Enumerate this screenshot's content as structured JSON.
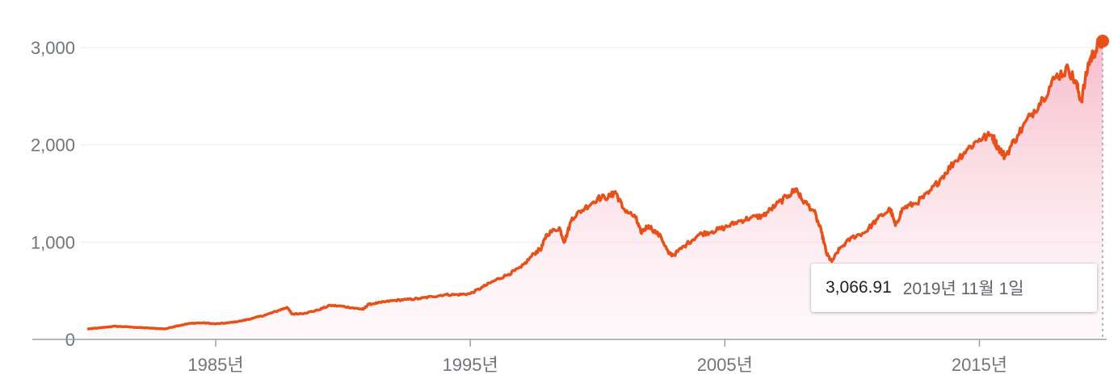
{
  "chart_data": {
    "type": "area",
    "title": "",
    "xlabel": "",
    "ylabel": "",
    "xlim": [
      1979.7,
      2020.0
    ],
    "ylim": [
      0,
      3066.91
    ],
    "y_ticks": [
      0,
      1000,
      2000,
      3000
    ],
    "y_tick_labels": [
      "0",
      "1,000",
      "2,000",
      "3,000"
    ],
    "x_ticks": [
      1985,
      1995,
      2005,
      2015
    ],
    "x_tick_labels": [
      "1985년",
      "1995년",
      "2005년",
      "2015년"
    ],
    "grid": true,
    "legend": "none",
    "colors": {
      "line": "#e8501a",
      "fill_top": "#f6b7c8",
      "axis": "#9aa0a6",
      "grid": "#ececec"
    },
    "series": [
      {
        "x": [
          1980.0,
          1980.5,
          1981.0,
          1981.5,
          1982.0,
          1982.5,
          1983.0,
          1983.5,
          1984.0,
          1984.5,
          1985.0,
          1985.5,
          1986.0,
          1986.5,
          1987.0,
          1987.5,
          1987.8,
          1988.0,
          1988.5,
          1989.0,
          1989.5,
          1990.0,
          1990.5,
          1990.8,
          1991.0,
          1991.5,
          1992.0,
          1992.5,
          1993.0,
          1993.5,
          1994.0,
          1994.5,
          1995.0,
          1995.5,
          1996.0,
          1996.5,
          1997.0,
          1997.5,
          1997.8,
          1998.0,
          1998.5,
          1998.7,
          1999.0,
          1999.5,
          2000.0,
          2000.5,
          2000.7,
          2001.0,
          2001.5,
          2001.7,
          2002.0,
          2002.5,
          2002.8,
          2003.0,
          2003.5,
          2004.0,
          2004.5,
          2005.0,
          2005.5,
          2006.0,
          2006.5,
          2007.0,
          2007.5,
          2007.8,
          2008.0,
          2008.5,
          2008.8,
          2009.0,
          2009.2,
          2009.5,
          2010.0,
          2010.5,
          2011.0,
          2011.5,
          2011.7,
          2012.0,
          2012.5,
          2013.0,
          2013.5,
          2014.0,
          2014.5,
          2015.0,
          2015.5,
          2015.7,
          2016.0,
          2016.5,
          2017.0,
          2017.5,
          2018.0,
          2018.5,
          2018.8,
          2019.0,
          2019.3,
          2019.5,
          2019.84
        ],
        "y": [
          108,
          120,
          135,
          130,
          122,
          115,
          108,
          140,
          165,
          170,
          160,
          170,
          190,
          220,
          255,
          300,
          330,
          260,
          270,
          300,
          350,
          340,
          320,
          310,
          360,
          380,
          400,
          410,
          420,
          440,
          460,
          460,
          470,
          540,
          610,
          670,
          740,
          880,
          940,
          1080,
          1150,
          1000,
          1250,
          1350,
          1450,
          1470,
          1520,
          1350,
          1250,
          1100,
          1170,
          1050,
          880,
          870,
          980,
          1080,
          1110,
          1150,
          1210,
          1250,
          1270,
          1380,
          1480,
          1550,
          1450,
          1320,
          1100,
          880,
          800,
          930,
          1050,
          1100,
          1240,
          1340,
          1170,
          1350,
          1400,
          1500,
          1660,
          1820,
          1950,
          2060,
          2100,
          1990,
          1880,
          2100,
          2300,
          2480,
          2700,
          2780,
          2630,
          2450,
          2850,
          2950,
          3066.91
        ]
      }
    ],
    "tooltip": {
      "value": "3,066.91",
      "date": "2019년 11월 1일"
    }
  }
}
